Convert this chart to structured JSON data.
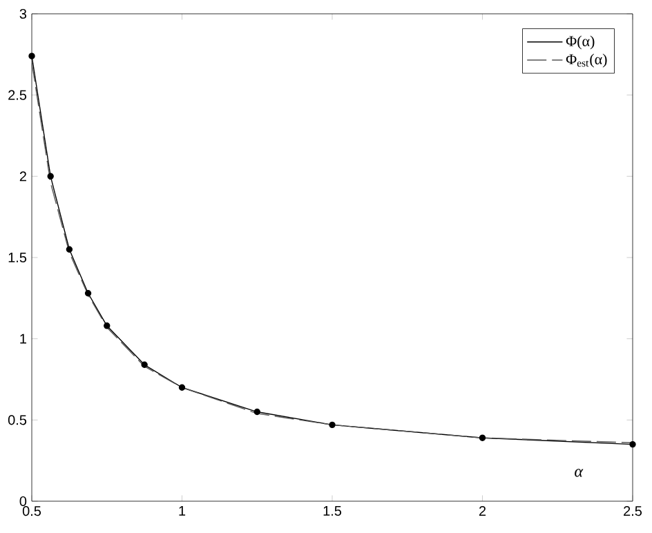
{
  "chart_data": {
    "type": "line",
    "xlabel": "α",
    "legend": "top right",
    "xlim": [
      0.5,
      2.5
    ],
    "ylim": [
      0,
      3
    ],
    "xticks": [
      0.5,
      1,
      1.5,
      2,
      2.5
    ],
    "yticks": [
      0,
      0.5,
      1,
      1.5,
      2,
      2.5,
      3
    ],
    "grid": false,
    "series": [
      {
        "name": "Φ(α)",
        "color": "#000000",
        "marker": "circle",
        "line_style": "solid",
        "x": [
          0.5,
          0.5625,
          0.625,
          0.6875,
          0.75,
          0.875,
          1,
          1.25,
          1.5,
          2,
          2.5
        ],
        "values": [
          2.74,
          2.0,
          1.55,
          1.28,
          1.08,
          0.84,
          0.7,
          0.55,
          0.47,
          0.39,
          0.35
        ]
      },
      {
        "name": "Φ$_{est}$(α)",
        "color": "#555555",
        "marker": "none",
        "line_style": "dashed",
        "x": [
          0.5,
          0.5625,
          0.625,
          0.6875,
          0.75,
          0.875,
          1,
          1.25,
          1.5,
          2,
          2.5
        ],
        "values": [
          2.7,
          1.96,
          1.53,
          1.27,
          1.07,
          0.83,
          0.7,
          0.54,
          0.47,
          0.39,
          0.36
        ]
      }
    ]
  }
}
